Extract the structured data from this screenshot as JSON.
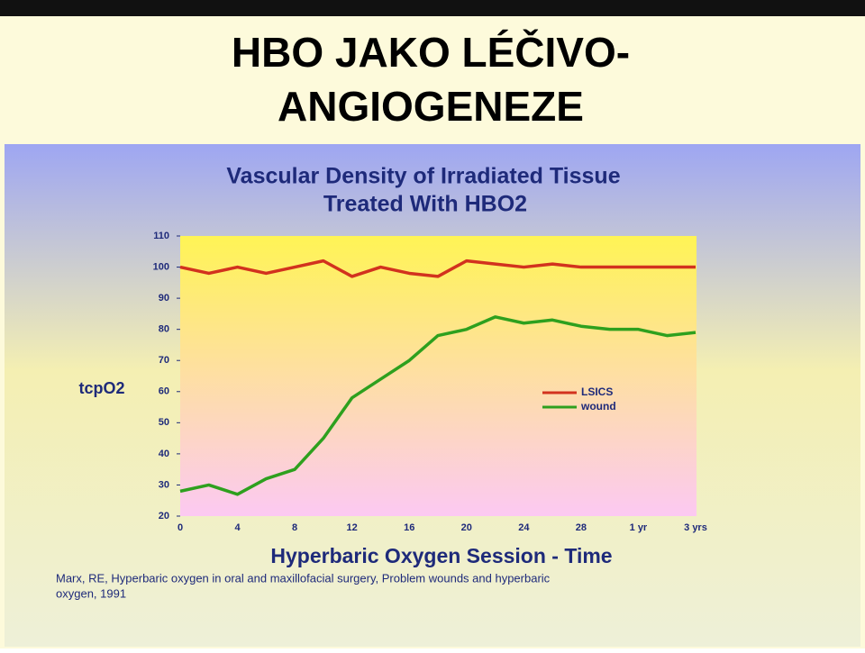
{
  "slide_title": [
    "HBO JAKO LÉČIVO-",
    "ANGIOGENEZE"
  ],
  "chart_data": {
    "type": "line",
    "title": [
      "Vascular Density of Irradiated Tissue",
      "Treated With HBO2"
    ],
    "y_label": "tcpO2",
    "x_label": "Hyperbaric Oxygen Session - Time",
    "note": [
      "Marx, RE, Hyperbaric oxygen in oral and maxillofacial surgery, Problem wounds and hyperbaric",
      "oxygen, 1991"
    ],
    "categories": [
      "0",
      null,
      "4",
      null,
      "8",
      null,
      "12",
      null,
      "16",
      null,
      "20",
      null,
      "24",
      null,
      "28",
      null,
      "1 yr",
      null,
      "3 yrs"
    ],
    "series": [
      {
        "name": "LSICS",
        "color": "#d2321e",
        "values": [
          100,
          98,
          100,
          98,
          100,
          102,
          97,
          100,
          98,
          97,
          102,
          101,
          100,
          101,
          100,
          100,
          100,
          100,
          100
        ]
      },
      {
        "name": "wound",
        "color": "#2ea01e",
        "values": [
          28,
          30,
          27,
          32,
          35,
          45,
          58,
          64,
          70,
          78,
          80,
          84,
          82,
          83,
          81,
          80,
          80,
          78,
          79
        ]
      }
    ],
    "ylim": [
      20,
      110
    ],
    "yticks": [
      20,
      30,
      40,
      50,
      60,
      70,
      80,
      90,
      100,
      110
    ],
    "legend": "right"
  }
}
